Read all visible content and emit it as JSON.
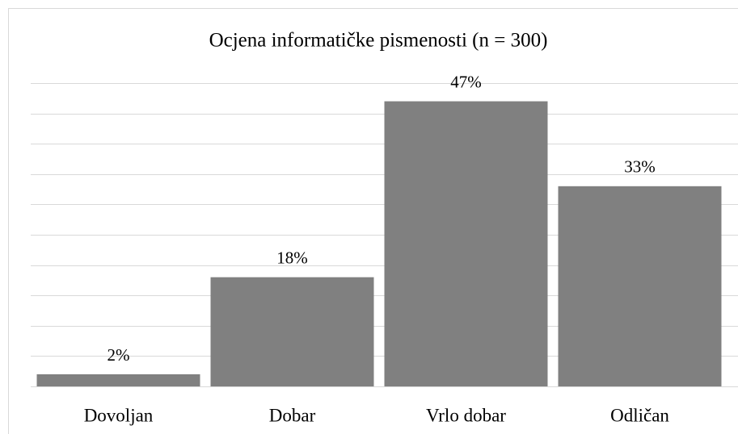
{
  "chart_data": {
    "type": "bar",
    "title": "Ocjena informatičke pismenosti (n = 300)",
    "categories": [
      "Dovoljan",
      "Dobar",
      "Vrlo dobar",
      "Odličan"
    ],
    "values": [
      2,
      18,
      47,
      33
    ],
    "value_labels": [
      "2%",
      "18%",
      "47%",
      "33%"
    ],
    "color": "#808080",
    "ylim": [
      0,
      50
    ],
    "yticks": [
      0,
      5,
      10,
      15,
      20,
      25,
      30,
      35,
      40,
      45,
      50
    ],
    "grid": true
  }
}
